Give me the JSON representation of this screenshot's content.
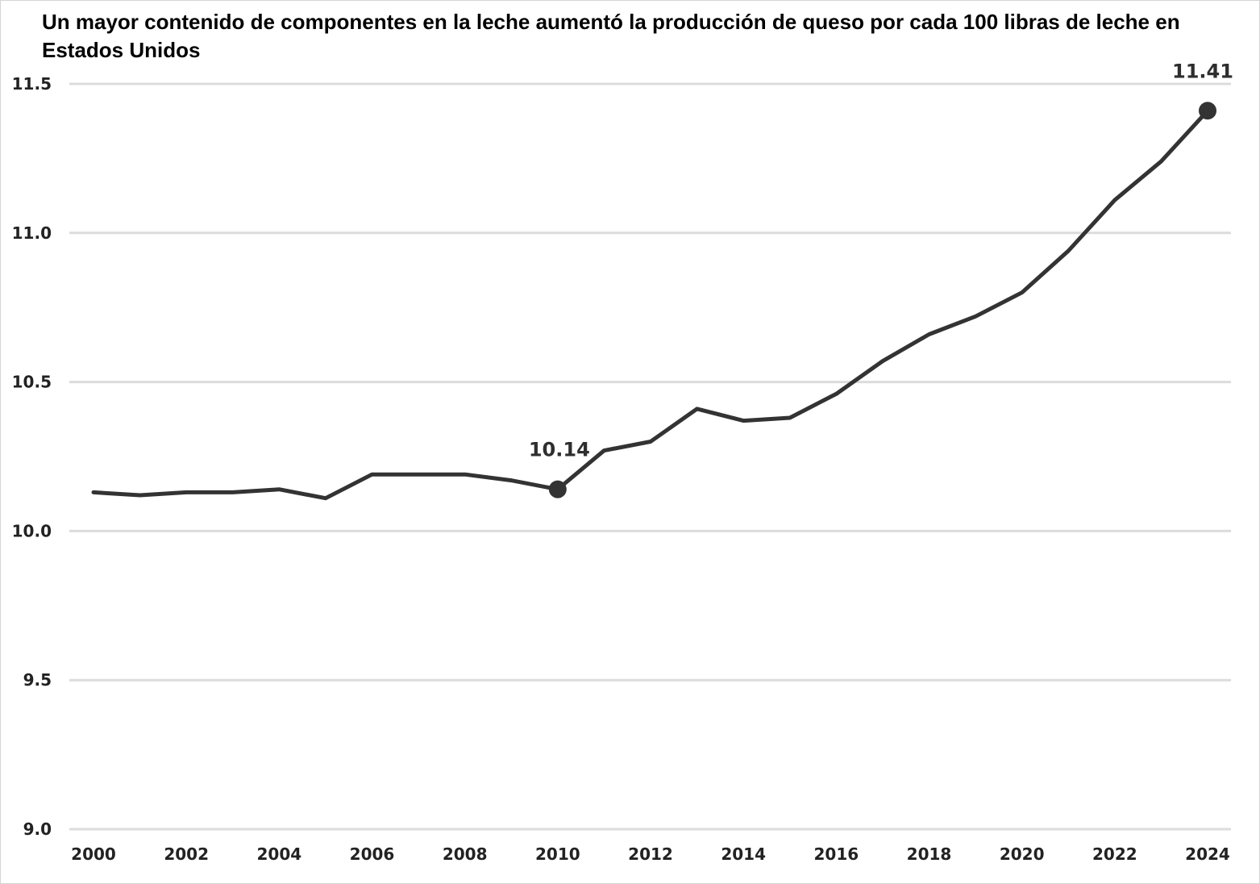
{
  "chart_data": {
    "type": "line",
    "title": "Un mayor contenido de componentes en la leche aumentó la producción de queso por cada 100 libras de leche en Estados Unidos",
    "xlabel": "",
    "ylabel": "",
    "ylim": [
      9.0,
      11.5
    ],
    "xlim": [
      2000,
      2024
    ],
    "yticks": [
      "9.0",
      "9.5",
      "10.0",
      "10.5",
      "11.0",
      "11.5"
    ],
    "xticks": [
      "2000",
      "2002",
      "2004",
      "2006",
      "2008",
      "2010",
      "2012",
      "2014",
      "2016",
      "2018",
      "2020",
      "2022",
      "2024"
    ],
    "grid": true,
    "series": [
      {
        "x": [
          2000,
          2001,
          2002,
          2003,
          2004,
          2005,
          2006,
          2007,
          2008,
          2009,
          2010,
          2011,
          2012,
          2013,
          2014,
          2015,
          2016,
          2017,
          2018,
          2019,
          2020,
          2021,
          2022,
          2023,
          2024
        ],
        "values": [
          10.13,
          10.12,
          10.13,
          10.13,
          10.14,
          10.11,
          10.19,
          10.19,
          10.19,
          10.17,
          10.14,
          10.27,
          10.3,
          10.41,
          10.37,
          10.38,
          10.46,
          10.57,
          10.66,
          10.72,
          10.8,
          10.94,
          11.11,
          11.24,
          11.41
        ]
      }
    ],
    "annotations": [
      {
        "x": 2010,
        "y": 10.14,
        "text": "10.14"
      },
      {
        "x": 2024,
        "y": 11.41,
        "text": "11.41"
      }
    ],
    "colors": {
      "line": "#333333",
      "grid": "#dcdcdc",
      "marker": "#333333"
    }
  }
}
